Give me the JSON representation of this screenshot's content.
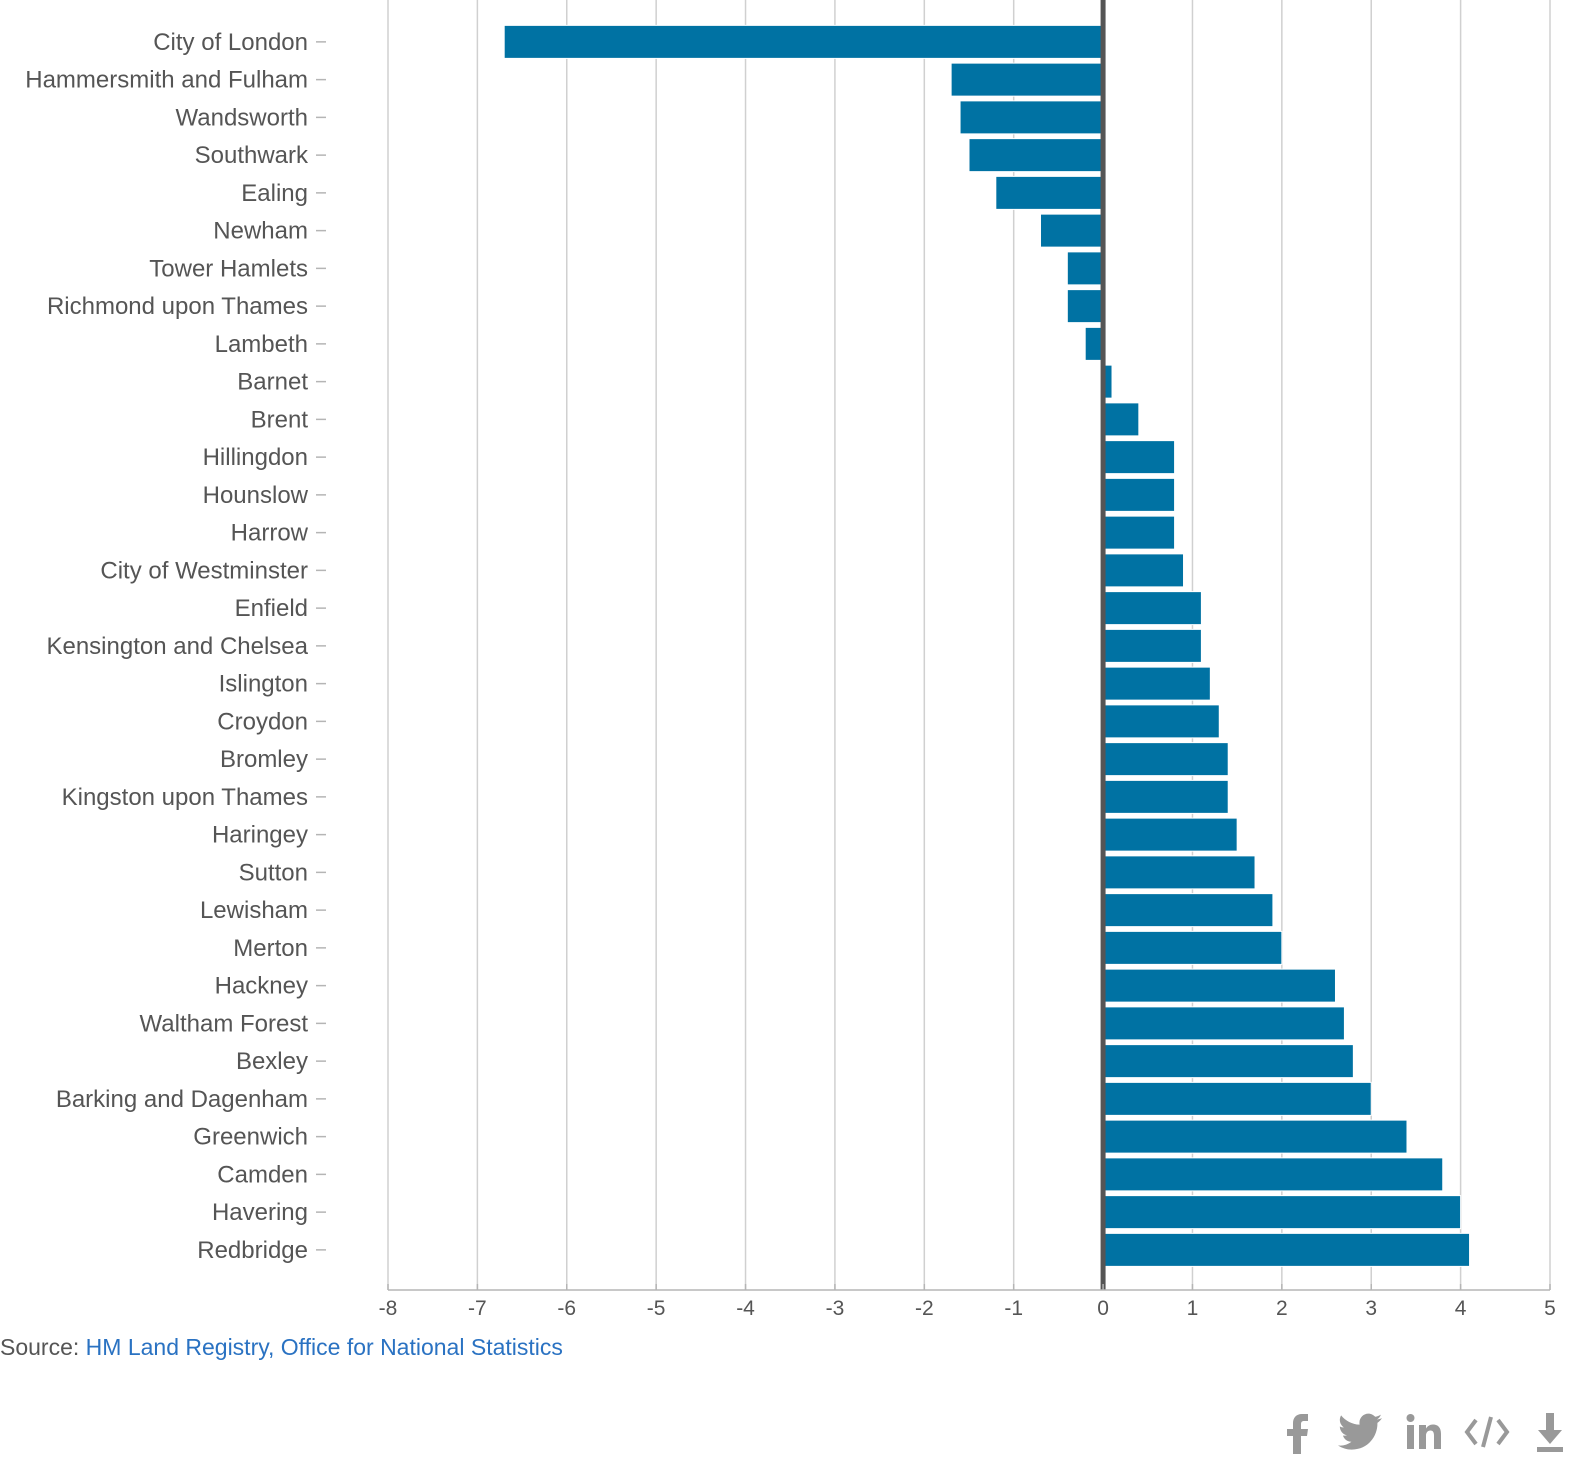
{
  "chart_data": {
    "type": "bar",
    "orientation": "horizontal",
    "categories": [
      "City of London",
      "Hammersmith and Fulham",
      "Wandsworth",
      "Southwark",
      "Ealing",
      "Newham",
      "Tower Hamlets",
      "Richmond upon Thames",
      "Lambeth",
      "Barnet",
      "Brent",
      "Hillingdon",
      "Hounslow",
      "Harrow",
      "City of Westminster",
      "Enfield",
      "Kensington and Chelsea",
      "Islington",
      "Croydon",
      "Bromley",
      "Kingston upon Thames",
      "Haringey",
      "Sutton",
      "Lewisham",
      "Merton",
      "Hackney",
      "Waltham Forest",
      "Bexley",
      "Barking and Dagenham",
      "Greenwich",
      "Camden",
      "Havering",
      "Redbridge"
    ],
    "values": [
      -6.7,
      -1.7,
      -1.6,
      -1.5,
      -1.2,
      -0.7,
      -0.4,
      -0.4,
      -0.2,
      0.1,
      0.4,
      0.8,
      0.8,
      0.8,
      0.9,
      1.1,
      1.1,
      1.2,
      1.3,
      1.4,
      1.4,
      1.5,
      1.7,
      1.9,
      2.0,
      2.6,
      2.7,
      2.8,
      3.0,
      3.4,
      3.8,
      4.0,
      4.1
    ],
    "xlim": [
      -8,
      5
    ],
    "xticks": [
      -8,
      -7,
      -6,
      -5,
      -4,
      -3,
      -2,
      -1,
      0,
      1,
      2,
      3,
      4,
      5
    ],
    "unit": "%",
    "grid": true,
    "bar_color": "#0072a3",
    "title": "",
    "xlabel": "",
    "ylabel": ""
  },
  "source": {
    "prefix": "Source: ",
    "link_text": "HM Land Registry, Office for National Statistics"
  },
  "share": [
    {
      "name": "facebook-icon",
      "glyph": "f"
    },
    {
      "name": "twitter-icon",
      "glyph": "twitter"
    },
    {
      "name": "linkedin-icon",
      "glyph": "in"
    },
    {
      "name": "embed-icon",
      "glyph": "</>"
    },
    {
      "name": "download-icon",
      "glyph": "download"
    }
  ]
}
